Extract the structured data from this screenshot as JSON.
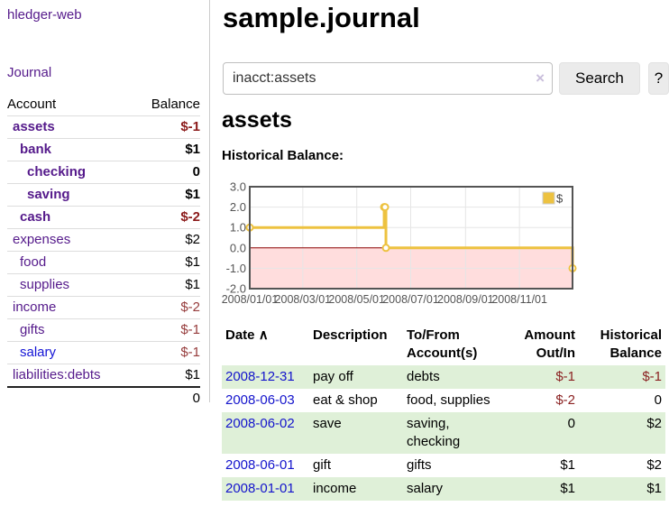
{
  "app": {
    "title": "hledger-web"
  },
  "colors": {
    "link_purple": "#551a8b",
    "link_blue": "#1414cc",
    "negative_red": "#8b2222",
    "row_green": "#dff0d8",
    "chart_gold": "#edc240",
    "chart_negative_region": "#ffdddd",
    "chart_zero_line": "#8b0000"
  },
  "sidebar": {
    "journal_link": "Journal",
    "accounts_table": {
      "headers": {
        "account": "Account",
        "balance": "Balance"
      },
      "rows": [
        {
          "account": "assets",
          "balance": "$-1",
          "depth": 1,
          "bold": true
        },
        {
          "account": "bank",
          "balance": "$1",
          "depth": 2,
          "bold": true
        },
        {
          "account": "checking",
          "balance": "0",
          "depth": 3,
          "bold": true
        },
        {
          "account": "saving",
          "balance": "$1",
          "depth": 3,
          "bold": true
        },
        {
          "account": "cash",
          "balance": "$-2",
          "depth": 2,
          "bold": true
        },
        {
          "account": "expenses",
          "balance": "$2",
          "depth": 1,
          "bold": false
        },
        {
          "account": "food",
          "balance": "$1",
          "depth": 2,
          "bold": false
        },
        {
          "account": "supplies",
          "balance": "$1",
          "depth": 2,
          "bold": false
        },
        {
          "account": "income",
          "balance": "$-2",
          "depth": 1,
          "bold": false
        },
        {
          "account": "gifts",
          "balance": "$-1",
          "depth": 2,
          "bold": false
        },
        {
          "account": "salary",
          "balance": "$-1",
          "depth": 2,
          "bold": false,
          "unvisited": true
        },
        {
          "account": "liabilities:debts",
          "balance": "$1",
          "depth": 1,
          "bold": false
        }
      ],
      "total": "0"
    }
  },
  "main": {
    "title": "sample.journal",
    "search": {
      "value": "inacct:assets",
      "clear_icon": "×",
      "search_button": "Search",
      "help_button": "?"
    },
    "account_heading": "assets",
    "chart_title": "Historical Balance:"
  },
  "chart_data": {
    "type": "line",
    "step": true,
    "title": "Historical Balance:",
    "legend_label": "$",
    "legend_position": "top-right",
    "grid": true,
    "x_range": [
      "2008-01-01",
      "2008-12-31"
    ],
    "ylim": [
      -2,
      3
    ],
    "y_ticks": [
      "3.0",
      "2.0",
      "1.0",
      "0.0",
      "-1.0",
      "-2.0"
    ],
    "x_ticks": [
      "2008/01/01",
      "2008/03/01",
      "2008/05/01",
      "2008/07/01",
      "2008/09/01",
      "2008/11/01"
    ],
    "series": [
      {
        "name": "$",
        "color": "#edc240",
        "marker_fill": "#ffffff",
        "points": [
          [
            "2008-01-01",
            1
          ],
          [
            "2008-06-01",
            2
          ],
          [
            "2008-06-02",
            2
          ],
          [
            "2008-06-03",
            0
          ],
          [
            "2008-12-31",
            -1
          ]
        ]
      }
    ],
    "negative_region_color": "#ffdddd",
    "zero_line_color": "#8b0000"
  },
  "register": {
    "sort_indicator": "∧",
    "headers": {
      "date": "Date",
      "description": "Description",
      "accounts_line1": "To/From",
      "accounts_line2": "Account(s)",
      "amount_line1": "Amount",
      "amount_line2": "Out/In",
      "balance_line1": "Historical",
      "balance_line2": "Balance"
    },
    "rows": [
      {
        "date": "2008-12-31",
        "description": "pay off",
        "accounts": "debts",
        "amount": "$-1",
        "balance": "$-1"
      },
      {
        "date": "2008-06-03",
        "description": "eat & shop",
        "accounts": "food, supplies",
        "amount": "$-2",
        "balance": "0"
      },
      {
        "date": "2008-06-02",
        "description": "save",
        "accounts": "saving, checking",
        "amount": "0",
        "balance": "$2"
      },
      {
        "date": "2008-06-01",
        "description": "gift",
        "accounts": "gifts",
        "amount": "$1",
        "balance": "$2"
      },
      {
        "date": "2008-01-01",
        "description": "income",
        "accounts": "salary",
        "amount": "$1",
        "balance": "$1"
      }
    ]
  }
}
